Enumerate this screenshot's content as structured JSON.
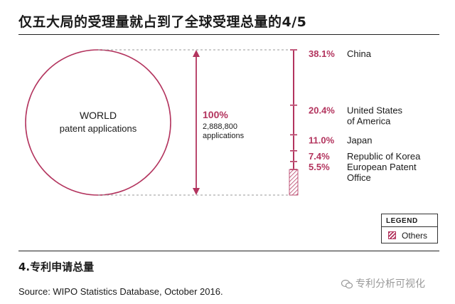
{
  "header": {
    "title": "仅五大局的受理量就占到了全球受理总量的4/5"
  },
  "colors": {
    "accent": "#b3345e",
    "text": "#1a1a1a",
    "dashed": "#999999"
  },
  "chart_data": {
    "type": "stacked-proportion",
    "world": {
      "label_line1": "WORLD",
      "label_line2": "patent applications",
      "total_percent": "100%",
      "total_value": "2,888,800",
      "total_unit": "applications"
    },
    "offices": [
      {
        "name_line1": "China",
        "name_line2": "",
        "percent": 38.1,
        "percent_label": "38.1%"
      },
      {
        "name_line1": "United States",
        "name_line2": "of America",
        "percent": 20.4,
        "percent_label": "20.4%"
      },
      {
        "name_line1": "Japan",
        "name_line2": "",
        "percent": 11.0,
        "percent_label": "11.0%"
      },
      {
        "name_line1": "Republic of Korea",
        "name_line2": "",
        "percent": 7.4,
        "percent_label": "7.4%"
      },
      {
        "name_line1": "European Patent",
        "name_line2": "Office",
        "percent": 5.5,
        "percent_label": "5.5%"
      }
    ],
    "others": {
      "percent": 17.6
    }
  },
  "legend": {
    "title": "LEGEND",
    "others_label": "Others"
  },
  "figure": {
    "caption": "4.专利申请总量"
  },
  "source": {
    "text": "Source: WIPO Statistics Database, October 2016."
  },
  "watermark": {
    "text": "专利分析可视化",
    "icon": "wechat-icon"
  }
}
